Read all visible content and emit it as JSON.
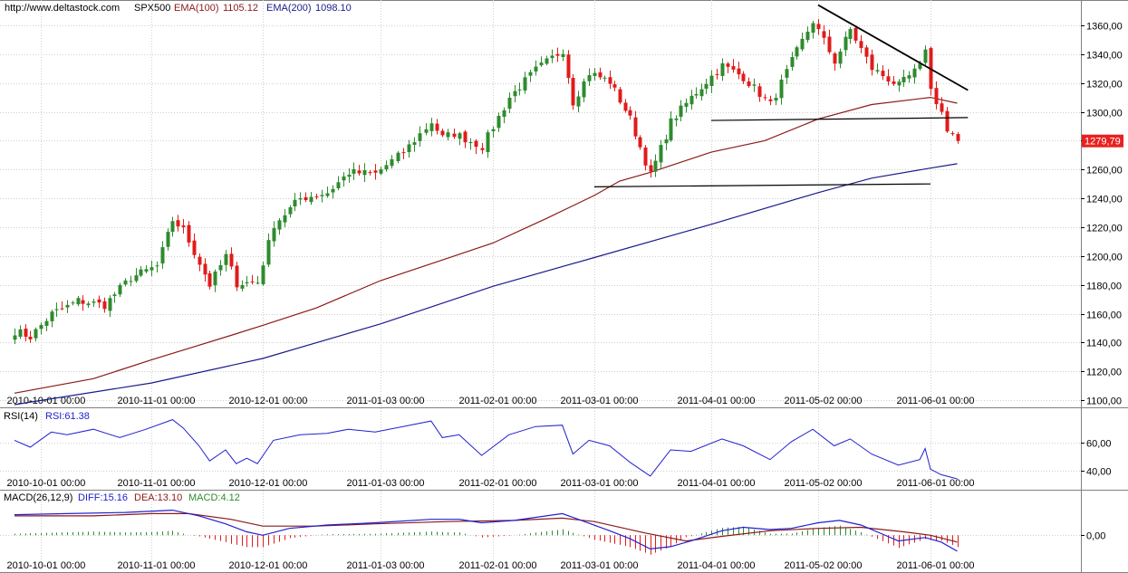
{
  "header": {
    "url": "http://www.deltastock.com",
    "symbol": "SPX500",
    "ema100_label": "EMA(100)",
    "ema100_value": "1105.12",
    "ema200_label": "EMA(200)",
    "ema200_value": "1098.10"
  },
  "colors": {
    "up": "#2e8b2e",
    "down": "#e01b1b",
    "ema100": "#8b1a1a",
    "ema200": "#1a1a8b",
    "rsi": "#2020d0",
    "price_tag": "#e82020",
    "grid": "#cfcfcf"
  },
  "price_tag": "1279,79",
  "chart_data": [
    {
      "type": "candlestick",
      "name": "SPX500",
      "x_ticks": [
        "2010-10-01 00:00",
        "2010-11-01 00:00",
        "2010-12-01 00:00",
        "2011-01-03 00:00",
        "2011-02-01 00:00",
        "2011-03-01 00:00",
        "2011-04-01 00:00",
        "2011-05-02 00:00",
        "2011-06-01 00:00"
      ],
      "y_ticks": [
        "1100,00",
        "1120,00",
        "1140,00",
        "1160,00",
        "1180,00",
        "1200,00",
        "1220,00",
        "1240,00",
        "1260,00",
        "1280,00",
        "1300,00",
        "1320,00",
        "1340,00",
        "1360,00"
      ],
      "ylim": [
        1097,
        1375
      ],
      "anchors": [
        [
          "2010-09-24",
          1148
        ],
        [
          "2010-09-29",
          1144
        ],
        [
          "2010-10-05",
          1160
        ],
        [
          "2010-10-08",
          1165
        ],
        [
          "2010-10-12",
          1169
        ],
        [
          "2010-10-19",
          1166
        ],
        [
          "2010-10-26",
          1185
        ],
        [
          "2010-11-02",
          1193
        ],
        [
          "2010-11-05",
          1225
        ],
        [
          "2010-11-09",
          1218
        ],
        [
          "2010-11-16",
          1180
        ],
        [
          "2010-11-19",
          1200
        ],
        [
          "2010-11-23",
          1181
        ],
        [
          "2010-11-30",
          1182
        ],
        [
          "2010-12-03",
          1222
        ],
        [
          "2010-12-10",
          1240
        ],
        [
          "2010-12-17",
          1244
        ],
        [
          "2010-12-24",
          1258
        ],
        [
          "2010-12-31",
          1257
        ],
        [
          "2011-01-07",
          1272
        ],
        [
          "2011-01-14",
          1293
        ],
        [
          "2011-01-19",
          1282
        ],
        [
          "2011-01-21",
          1285
        ],
        [
          "2011-01-28",
          1276
        ],
        [
          "2011-02-04",
          1310
        ],
        [
          "2011-02-11",
          1329
        ],
        [
          "2011-02-18",
          1343
        ],
        [
          "2011-02-23",
          1307
        ],
        [
          "2011-02-28",
          1327
        ],
        [
          "2011-03-04",
          1321
        ],
        [
          "2011-03-10",
          1295
        ],
        [
          "2011-03-16",
          1256
        ],
        [
          "2011-03-22",
          1293
        ],
        [
          "2011-03-28",
          1310
        ],
        [
          "2011-04-05",
          1332
        ],
        [
          "2011-04-11",
          1324
        ],
        [
          "2011-04-18",
          1305
        ],
        [
          "2011-04-25",
          1335
        ],
        [
          "2011-04-29",
          1363
        ],
        [
          "2011-05-05",
          1335
        ],
        [
          "2011-05-10",
          1357
        ],
        [
          "2011-05-16",
          1330
        ],
        [
          "2011-05-23",
          1318
        ],
        [
          "2011-05-27",
          1331
        ],
        [
          "2011-05-31",
          1345
        ],
        [
          "2011-06-01",
          1315
        ],
        [
          "2011-06-03",
          1300
        ],
        [
          "2011-06-06",
          1286
        ],
        [
          "2011-06-08",
          1279.79
        ]
      ],
      "ema100": [
        [
          "2010-09-24",
          1105
        ],
        [
          "2010-10-15",
          1115
        ],
        [
          "2010-11-01",
          1128
        ],
        [
          "2010-11-22",
          1145
        ],
        [
          "2010-12-01",
          1152
        ],
        [
          "2010-12-15",
          1164
        ],
        [
          "2011-01-03",
          1183
        ],
        [
          "2011-02-01",
          1209
        ],
        [
          "2011-02-15",
          1226
        ],
        [
          "2011-03-01",
          1242
        ],
        [
          "2011-03-08",
          1252
        ],
        [
          "2011-03-16",
          1258
        ],
        [
          "2011-04-01",
          1272
        ],
        [
          "2011-04-15",
          1280
        ],
        [
          "2011-05-02",
          1295
        ],
        [
          "2011-05-16",
          1305
        ],
        [
          "2011-06-01",
          1310
        ],
        [
          "2011-06-08",
          1306
        ]
      ],
      "ema200": [
        [
          "2010-09-24",
          1097
        ],
        [
          "2010-11-01",
          1112
        ],
        [
          "2010-12-01",
          1129
        ],
        [
          "2011-01-03",
          1153
        ],
        [
          "2011-02-01",
          1179
        ],
        [
          "2011-03-01",
          1199
        ],
        [
          "2011-04-01",
          1222
        ],
        [
          "2011-05-02",
          1244
        ],
        [
          "2011-05-16",
          1254
        ],
        [
          "2011-06-01",
          1261
        ],
        [
          "2011-06-08",
          1264
        ]
      ],
      "trendlines": [
        [
          [
            "2011-05-02",
            1374
          ],
          [
            "2011-06-10",
            1315
          ]
        ],
        [
          [
            "2011-04-01",
            1294
          ],
          [
            "2011-06-10",
            1296
          ]
        ],
        [
          [
            "2011-03-01",
            1248
          ],
          [
            "2011-06-01",
            1250
          ]
        ]
      ]
    },
    {
      "type": "line",
      "name": "RSI(14)",
      "title": "RSI(14)",
      "value_label": "RSI:61.38",
      "y_ticks": [
        "40,00",
        "60,00"
      ],
      "ylim": [
        32,
        82
      ],
      "series": [
        {
          "name": "RSI",
          "points": [
            [
              "2010-09-24",
              62
            ],
            [
              "2010-09-29",
              57
            ],
            [
              "2010-10-05",
              68
            ],
            [
              "2010-10-08",
              66
            ],
            [
              "2010-10-15",
              70
            ],
            [
              "2010-10-22",
              64
            ],
            [
              "2010-10-29",
              70
            ],
            [
              "2010-11-05",
              77
            ],
            [
              "2010-11-09",
              71
            ],
            [
              "2010-11-12",
              58
            ],
            [
              "2010-11-16",
              47
            ],
            [
              "2010-11-19",
              55
            ],
            [
              "2010-11-23",
              45
            ],
            [
              "2010-11-26",
              49
            ],
            [
              "2010-11-30",
              45
            ],
            [
              "2010-12-03",
              62
            ],
            [
              "2010-12-10",
              66
            ],
            [
              "2010-12-17",
              67
            ],
            [
              "2010-12-24",
              70
            ],
            [
              "2010-12-31",
              68
            ],
            [
              "2011-01-07",
              72
            ],
            [
              "2011-01-14",
              76
            ],
            [
              "2011-01-19",
              64
            ],
            [
              "2011-01-24",
              66
            ],
            [
              "2011-01-28",
              51
            ],
            [
              "2011-02-04",
              66
            ],
            [
              "2011-02-11",
              72
            ],
            [
              "2011-02-18",
              73
            ],
            [
              "2011-02-23",
              52
            ],
            [
              "2011-02-28",
              62
            ],
            [
              "2011-03-04",
              58
            ],
            [
              "2011-03-10",
              46
            ],
            [
              "2011-03-16",
              36
            ],
            [
              "2011-03-22",
              55
            ],
            [
              "2011-03-28",
              54
            ],
            [
              "2011-04-05",
              63
            ],
            [
              "2011-04-11",
              58
            ],
            [
              "2011-04-18",
              48
            ],
            [
              "2011-04-25",
              61
            ],
            [
              "2011-04-29",
              70
            ],
            [
              "2011-05-05",
              58
            ],
            [
              "2011-05-10",
              63
            ],
            [
              "2011-05-16",
              52
            ],
            [
              "2011-05-23",
              44
            ],
            [
              "2011-05-27",
              48
            ],
            [
              "2011-05-31",
              56
            ],
            [
              "2011-06-01",
              41
            ],
            [
              "2011-06-03",
              37
            ],
            [
              "2011-06-08",
              34
            ]
          ]
        }
      ]
    },
    {
      "type": "bar+line",
      "name": "MACD(26,12,9)",
      "title": "MACD(26,12,9)",
      "diff_label": "DIFF:15.16",
      "dea_label": "DEA:13.10",
      "macd_label": "MACD:4.12",
      "y_ticks": [
        "0,00"
      ],
      "ylim": [
        -26,
        36
      ],
      "diff": [
        [
          "2010-09-24",
          18
        ],
        [
          "2010-10-10",
          19
        ],
        [
          "2010-10-25",
          20
        ],
        [
          "2010-11-05",
          22
        ],
        [
          "2010-11-12",
          17
        ],
        [
          "2010-11-19",
          10
        ],
        [
          "2010-11-26",
          3
        ],
        [
          "2010-12-01",
          0
        ],
        [
          "2010-12-08",
          6
        ],
        [
          "2010-12-17",
          9
        ],
        [
          "2010-12-31",
          11
        ],
        [
          "2011-01-14",
          14
        ],
        [
          "2011-01-24",
          14
        ],
        [
          "2011-01-28",
          11
        ],
        [
          "2011-02-07",
          13
        ],
        [
          "2011-02-18",
          19
        ],
        [
          "2011-02-24",
          14
        ],
        [
          "2011-03-04",
          4
        ],
        [
          "2011-03-10",
          -3
        ],
        [
          "2011-03-16",
          -12
        ],
        [
          "2011-03-22",
          -10
        ],
        [
          "2011-03-28",
          -5
        ],
        [
          "2011-04-05",
          4
        ],
        [
          "2011-04-11",
          7
        ],
        [
          "2011-04-18",
          5
        ],
        [
          "2011-04-25",
          6
        ],
        [
          "2011-05-02",
          11
        ],
        [
          "2011-05-06",
          13
        ],
        [
          "2011-05-12",
          9
        ],
        [
          "2011-05-19",
          -1
        ],
        [
          "2011-05-23",
          -5
        ],
        [
          "2011-05-31",
          -2
        ],
        [
          "2011-06-03",
          -6
        ],
        [
          "2011-06-08",
          -14
        ]
      ],
      "dea": [
        [
          "2010-09-24",
          17
        ],
        [
          "2010-10-15",
          17
        ],
        [
          "2010-11-01",
          19
        ],
        [
          "2010-11-10",
          19
        ],
        [
          "2010-11-22",
          14
        ],
        [
          "2010-12-01",
          8
        ],
        [
          "2010-12-15",
          8
        ],
        [
          "2011-01-01",
          10
        ],
        [
          "2011-01-20",
          12
        ],
        [
          "2011-02-07",
          13
        ],
        [
          "2011-02-18",
          15
        ],
        [
          "2011-03-01",
          12
        ],
        [
          "2011-03-15",
          2
        ],
        [
          "2011-03-25",
          -5
        ],
        [
          "2011-04-05",
          -1
        ],
        [
          "2011-04-18",
          4
        ],
        [
          "2011-05-02",
          6
        ],
        [
          "2011-05-12",
          7
        ],
        [
          "2011-05-24",
          3
        ],
        [
          "2011-06-01",
          0
        ],
        [
          "2011-06-08",
          -6
        ]
      ],
      "hist_ratio": 1.3
    }
  ]
}
